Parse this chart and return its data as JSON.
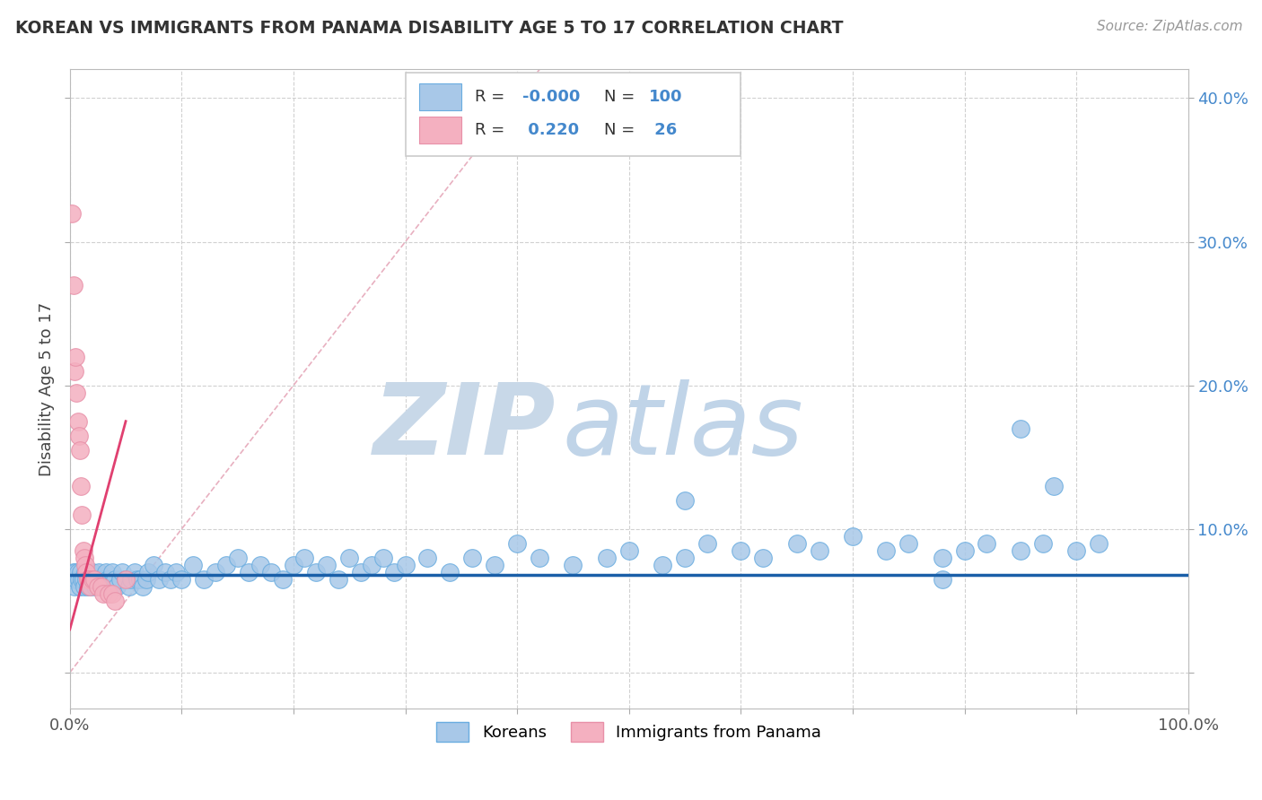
{
  "title": "KOREAN VS IMMIGRANTS FROM PANAMA DISABILITY AGE 5 TO 17 CORRELATION CHART",
  "source": "Source: ZipAtlas.com",
  "ylabel": "Disability Age 5 to 17",
  "xlim": [
    0,
    1.0
  ],
  "ylim": [
    -0.025,
    0.42
  ],
  "xticks": [
    0.0,
    0.1,
    0.2,
    0.3,
    0.4,
    0.5,
    0.6,
    0.7,
    0.8,
    0.9,
    1.0
  ],
  "yticks": [
    0.0,
    0.1,
    0.2,
    0.3,
    0.4
  ],
  "xticklabels": [
    "0.0%",
    "",
    "",
    "",
    "",
    "",
    "",
    "",
    "",
    "",
    "100.0%"
  ],
  "yticklabels": [
    "",
    "10.0%",
    "20.0%",
    "30.0%",
    "40.0%"
  ],
  "legend_r_korean": "-0.000",
  "legend_n_korean": "100",
  "legend_r_panama": "0.220",
  "legend_n_panama": "26",
  "korean_color": "#a8c8e8",
  "korean_edge_color": "#6aade0",
  "panama_color": "#f4b0c0",
  "panama_edge_color": "#e890a8",
  "korean_line_color": "#1a5fa8",
  "panama_line_color": "#e04070",
  "diagonal_color": "#e8b0c0",
  "watermark_zip_color": "#c8d8e8",
  "watermark_atlas_color": "#c0d4e8",
  "background_color": "#ffffff",
  "legend_text_color": "#4488cc",
  "legend_label_color": "#333333",
  "korean_x": [
    0.002,
    0.003,
    0.004,
    0.005,
    0.006,
    0.007,
    0.008,
    0.009,
    0.01,
    0.011,
    0.012,
    0.013,
    0.014,
    0.015,
    0.016,
    0.017,
    0.018,
    0.019,
    0.02,
    0.021,
    0.022,
    0.023,
    0.025,
    0.026,
    0.027,
    0.028,
    0.03,
    0.032,
    0.034,
    0.036,
    0.038,
    0.04,
    0.042,
    0.045,
    0.047,
    0.05,
    0.053,
    0.055,
    0.058,
    0.06,
    0.063,
    0.065,
    0.068,
    0.07,
    0.075,
    0.08,
    0.085,
    0.09,
    0.095,
    0.1,
    0.11,
    0.12,
    0.13,
    0.14,
    0.15,
    0.16,
    0.17,
    0.18,
    0.19,
    0.2,
    0.21,
    0.22,
    0.23,
    0.24,
    0.25,
    0.26,
    0.27,
    0.28,
    0.29,
    0.3,
    0.32,
    0.34,
    0.36,
    0.38,
    0.4,
    0.42,
    0.45,
    0.48,
    0.5,
    0.53,
    0.55,
    0.57,
    0.6,
    0.62,
    0.65,
    0.67,
    0.7,
    0.73,
    0.75,
    0.78,
    0.8,
    0.82,
    0.85,
    0.87,
    0.9,
    0.92,
    0.85,
    0.88,
    0.55,
    0.78
  ],
  "korean_y": [
    0.065,
    0.07,
    0.06,
    0.07,
    0.065,
    0.07,
    0.065,
    0.06,
    0.07,
    0.065,
    0.065,
    0.06,
    0.07,
    0.065,
    0.06,
    0.07,
    0.065,
    0.06,
    0.07,
    0.065,
    0.065,
    0.06,
    0.065,
    0.07,
    0.065,
    0.06,
    0.065,
    0.07,
    0.065,
    0.06,
    0.07,
    0.065,
    0.06,
    0.065,
    0.07,
    0.065,
    0.06,
    0.065,
    0.07,
    0.065,
    0.065,
    0.06,
    0.065,
    0.07,
    0.075,
    0.065,
    0.07,
    0.065,
    0.07,
    0.065,
    0.075,
    0.065,
    0.07,
    0.075,
    0.08,
    0.07,
    0.075,
    0.07,
    0.065,
    0.075,
    0.08,
    0.07,
    0.075,
    0.065,
    0.08,
    0.07,
    0.075,
    0.08,
    0.07,
    0.075,
    0.08,
    0.07,
    0.08,
    0.075,
    0.09,
    0.08,
    0.075,
    0.08,
    0.085,
    0.075,
    0.08,
    0.09,
    0.085,
    0.08,
    0.09,
    0.085,
    0.095,
    0.085,
    0.09,
    0.08,
    0.085,
    0.09,
    0.085,
    0.09,
    0.085,
    0.09,
    0.17,
    0.13,
    0.12,
    0.065
  ],
  "panama_x": [
    0.002,
    0.003,
    0.004,
    0.005,
    0.006,
    0.007,
    0.008,
    0.009,
    0.01,
    0.011,
    0.012,
    0.013,
    0.014,
    0.015,
    0.016,
    0.017,
    0.018,
    0.019,
    0.021,
    0.023,
    0.025,
    0.028,
    0.032,
    0.036,
    0.04,
    0.05
  ],
  "panama_y": [
    0.065,
    0.065,
    0.065,
    0.065,
    0.065,
    0.065,
    0.065,
    0.065,
    0.065,
    0.065,
    0.065,
    0.065,
    0.065,
    0.065,
    0.065,
    0.065,
    0.065,
    0.065,
    0.065,
    0.065,
    0.065,
    0.065,
    0.065,
    0.065,
    0.065,
    0.065
  ],
  "panama_x_scatter": [
    0.002,
    0.003,
    0.004,
    0.005,
    0.006,
    0.007,
    0.008,
    0.009,
    0.01,
    0.011,
    0.012,
    0.013,
    0.014,
    0.015,
    0.016,
    0.017,
    0.018,
    0.02,
    0.022,
    0.025,
    0.028,
    0.03,
    0.035,
    0.038,
    0.04,
    0.05
  ],
  "panama_y_scatter": [
    0.32,
    0.27,
    0.21,
    0.22,
    0.195,
    0.175,
    0.165,
    0.155,
    0.13,
    0.11,
    0.085,
    0.08,
    0.075,
    0.07,
    0.065,
    0.065,
    0.06,
    0.065,
    0.065,
    0.06,
    0.06,
    0.055,
    0.055,
    0.055,
    0.05,
    0.065
  ]
}
